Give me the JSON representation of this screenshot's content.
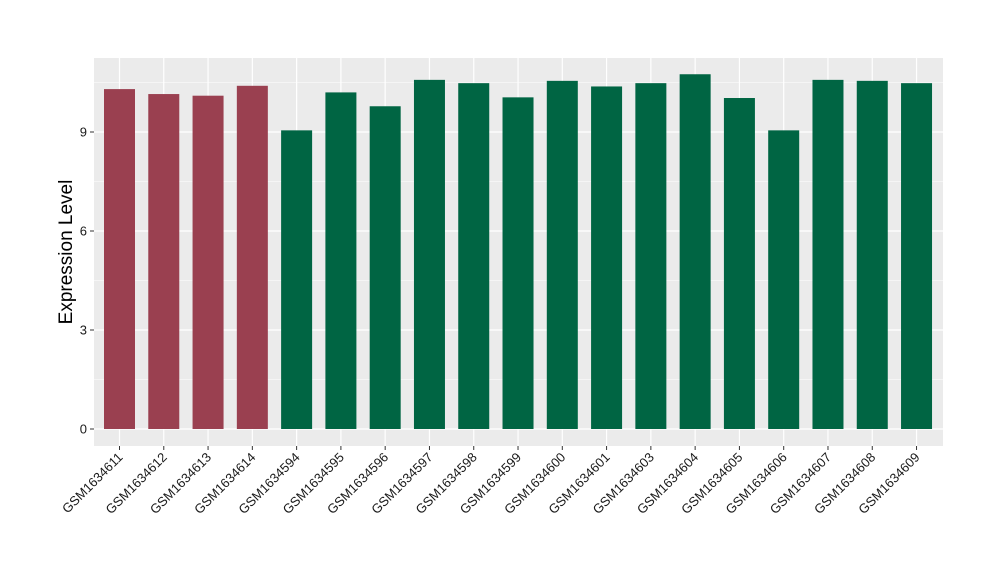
{
  "chart_data": {
    "type": "bar",
    "ylabel": "Expression Level",
    "xlabel": "",
    "ylim": [
      0,
      11.25
    ],
    "yticks": [
      0,
      3,
      6,
      9
    ],
    "grid": true,
    "panel_background": "#EBEBEB",
    "categories": [
      "GSM1634611",
      "GSM1634612",
      "GSM1634613",
      "GSM1634614",
      "GSM1634594",
      "GSM1634595",
      "GSM1634596",
      "GSM1634597",
      "GSM1634598",
      "GSM1634599",
      "GSM1634600",
      "GSM1634601",
      "GSM1634603",
      "GSM1634604",
      "GSM1634605",
      "GSM1634606",
      "GSM1634607",
      "GSM1634608",
      "GSM1634609"
    ],
    "values": [
      10.3,
      10.15,
      10.1,
      10.4,
      9.05,
      10.2,
      9.78,
      10.58,
      10.48,
      10.05,
      10.55,
      10.38,
      10.48,
      10.75,
      10.03,
      9.05,
      10.58,
      10.55,
      10.48
    ],
    "groups": [
      "a",
      "a",
      "a",
      "a",
      "b",
      "b",
      "b",
      "b",
      "b",
      "b",
      "b",
      "b",
      "b",
      "b",
      "b",
      "b",
      "b",
      "b",
      "b"
    ],
    "group_colors": {
      "a": "#9A4050",
      "b": "#006543"
    }
  }
}
